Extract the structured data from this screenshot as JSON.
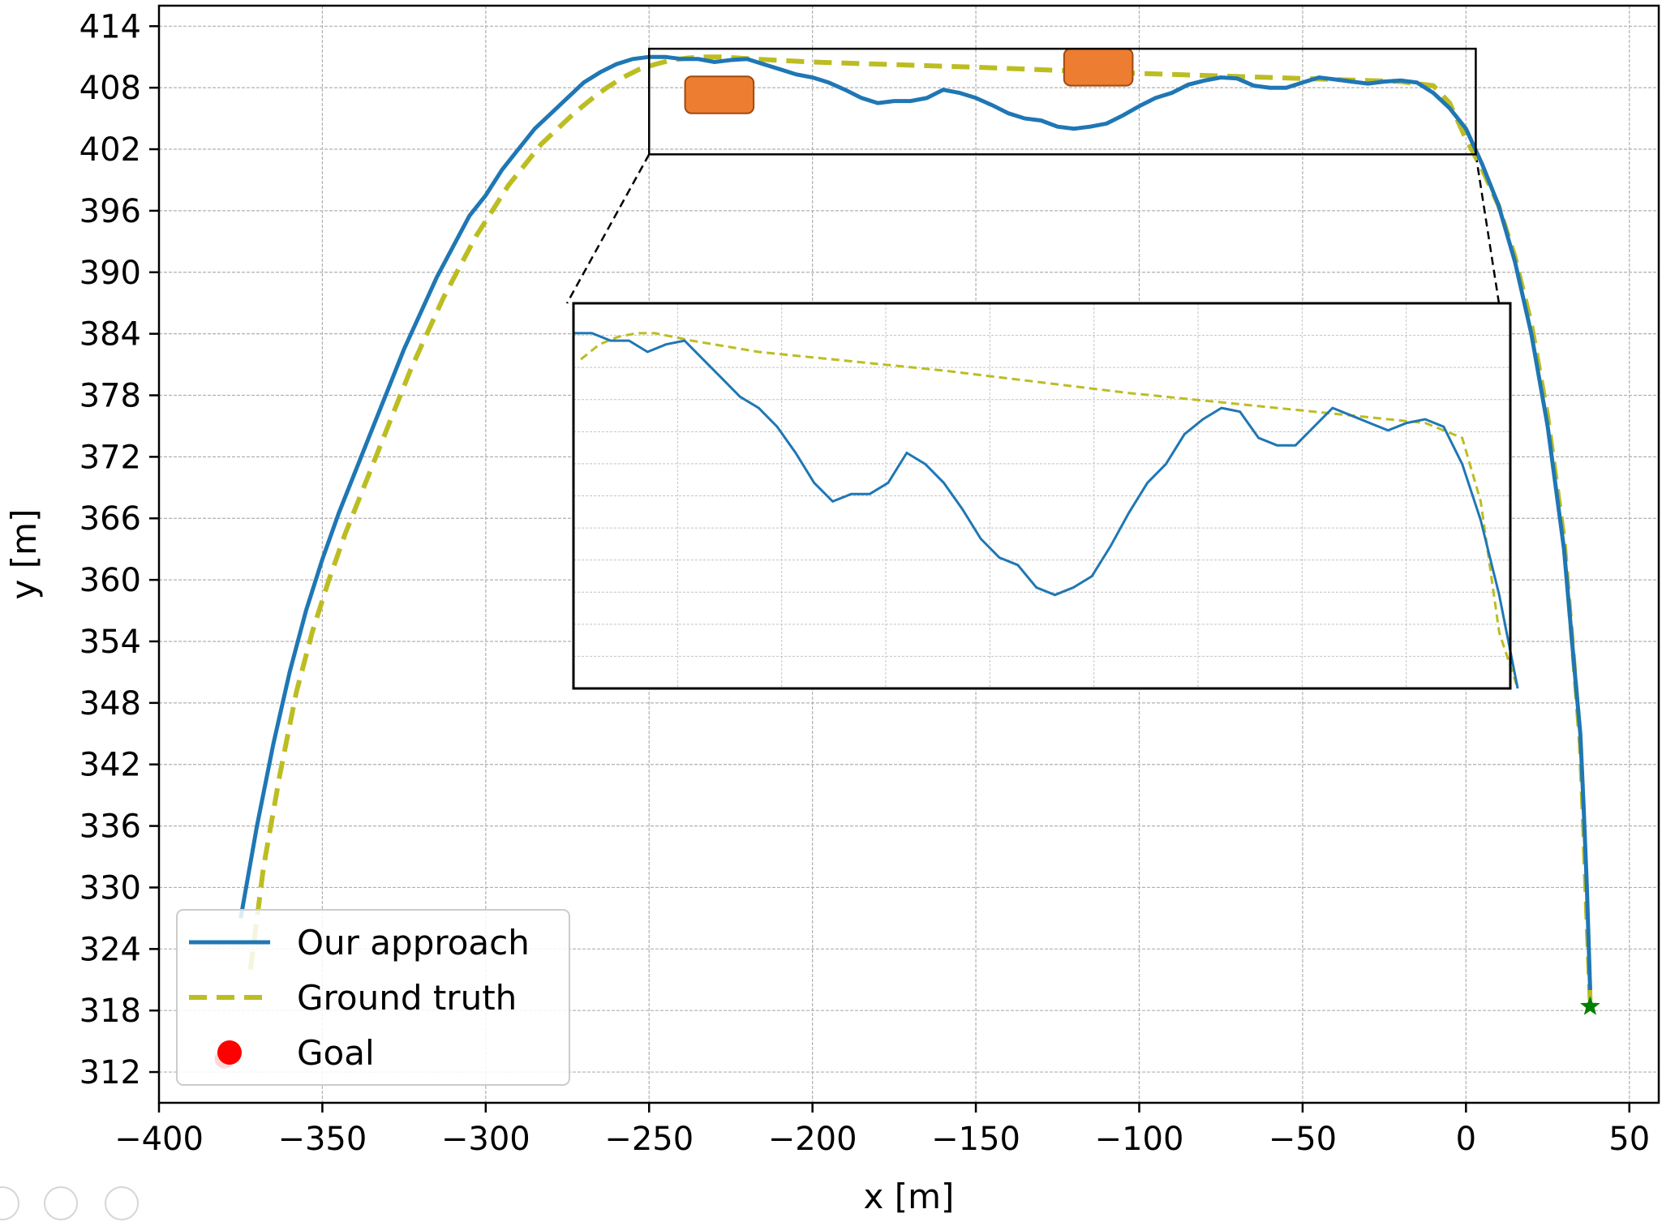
{
  "chart_data": {
    "type": "line",
    "xlabel": "x [m]",
    "ylabel": "y [m]",
    "xlim": [
      -400,
      59
    ],
    "ylim": [
      309,
      416
    ],
    "x_ticks": [
      -400,
      -350,
      -300,
      -250,
      -200,
      -150,
      -100,
      -50,
      0,
      50
    ],
    "x_tick_labels": [
      "−400",
      "−350",
      "−300",
      "−250",
      "−200",
      "−150",
      "−100",
      "−50",
      "0",
      "50"
    ],
    "y_ticks": [
      312,
      318,
      324,
      330,
      336,
      342,
      348,
      354,
      360,
      366,
      372,
      378,
      384,
      390,
      396,
      402,
      408,
      414
    ],
    "y_tick_labels": [
      "312",
      "318",
      "324",
      "330",
      "336",
      "342",
      "348",
      "354",
      "360",
      "366",
      "372",
      "378",
      "384",
      "390",
      "396",
      "402",
      "408",
      "414"
    ],
    "grid": true,
    "legend": {
      "position": "bottom-left",
      "entries": [
        "Our approach",
        "Ground truth",
        "Goal"
      ]
    },
    "series": [
      {
        "name": "Our approach",
        "color": "#1f77b4",
        "style": "solid",
        "x": [
          -375,
          -370,
          -365,
          -360,
          -355,
          -350,
          -345,
          -340,
          -335,
          -330,
          -325,
          -320,
          -315,
          -310,
          -305,
          -300,
          -295,
          -290,
          -285,
          -280,
          -275,
          -270,
          -265,
          -260,
          -255,
          -250,
          -245,
          -240,
          -235,
          -230,
          -225,
          -220,
          -215,
          -210,
          -205,
          -200,
          -195,
          -190,
          -185,
          -180,
          -175,
          -170,
          -165,
          -160,
          -155,
          -150,
          -145,
          -140,
          -135,
          -130,
          -125,
          -120,
          -115,
          -110,
          -105,
          -100,
          -95,
          -90,
          -85,
          -80,
          -75,
          -70,
          -65,
          -60,
          -55,
          -50,
          -45,
          -40,
          -35,
          -30,
          -25,
          -20,
          -15,
          -10,
          -5,
          0,
          5,
          10,
          15,
          20,
          25,
          30,
          33,
          35,
          36,
          37,
          38
        ],
        "y": [
          327,
          336,
          344,
          351,
          357,
          362,
          366.5,
          370.5,
          374.5,
          378.5,
          382.5,
          386,
          389.5,
          392.5,
          395.5,
          397.5,
          400,
          402,
          404,
          405.5,
          407,
          408.5,
          409.5,
          410.3,
          410.8,
          411,
          411,
          410.8,
          410.8,
          410.5,
          410.7,
          410.8,
          410.3,
          409.8,
          409.3,
          409.0,
          408.5,
          407.8,
          407.0,
          406.5,
          406.7,
          406.7,
          407.0,
          407.8,
          407.5,
          407.0,
          406.3,
          405.5,
          405.0,
          404.8,
          404.2,
          404.0,
          404.2,
          404.5,
          405.3,
          406.2,
          407.0,
          407.5,
          408.3,
          408.7,
          409.0,
          408.9,
          408.2,
          408.0,
          408.0,
          408.5,
          409.0,
          408.8,
          408.6,
          408.4,
          408.6,
          408.7,
          408.5,
          407.5,
          406.0,
          404.0,
          400.5,
          396.5,
          391.0,
          384.0,
          375.0,
          363.0,
          352.0,
          345.0,
          338.0,
          330.0,
          320.0
        ]
      },
      {
        "name": "Ground truth",
        "color": "#bcbd22",
        "style": "dashed",
        "x": [
          -372,
          -368,
          -363,
          -358,
          -353,
          -348,
          -343,
          -338,
          -333,
          -328,
          -323,
          -318,
          -313,
          -308,
          -303,
          -298,
          -293,
          -288,
          -283,
          -278,
          -273,
          -268,
          -263,
          -258,
          -253,
          -248,
          -243,
          -238,
          -233,
          -228,
          -223,
          -218,
          -200,
          -150,
          -100,
          -50,
          -20,
          -10,
          -5,
          0,
          5,
          10,
          15,
          20,
          25,
          30,
          33,
          35,
          36,
          37,
          38
        ],
        "y": [
          322,
          332,
          341,
          349,
          355,
          360,
          364.5,
          368.5,
          372.5,
          376.5,
          380.5,
          384,
          387.5,
          390.5,
          393.5,
          396,
          398.5,
          400.5,
          402.5,
          404,
          405.5,
          406.8,
          408,
          409,
          409.8,
          410.3,
          410.7,
          410.9,
          411,
          411,
          410.9,
          410.8,
          410.5,
          410,
          409.4,
          408.9,
          408.6,
          408.2,
          406.5,
          403,
          400,
          396.5,
          391.5,
          385,
          376,
          364,
          352,
          344,
          336,
          327,
          319
        ]
      }
    ],
    "markers": [
      {
        "name": "Goal",
        "color": "#ff0000",
        "x": -380,
        "y": 313.3
      },
      {
        "name": "end-star",
        "color": "#008000",
        "x": 38,
        "y": 318.4
      }
    ],
    "obstacles": [
      {
        "x": [
          -239,
          -218
        ],
        "y": [
          405.5,
          409.1
        ],
        "color": "#ed7d31"
      },
      {
        "x": [
          -123,
          -102
        ],
        "y": [
          408.2,
          411.8
        ],
        "color": "#ed7d31"
      }
    ],
    "zoom_region": {
      "x": [
        -250,
        3
      ],
      "y": [
        401.5,
        411.8
      ]
    }
  }
}
